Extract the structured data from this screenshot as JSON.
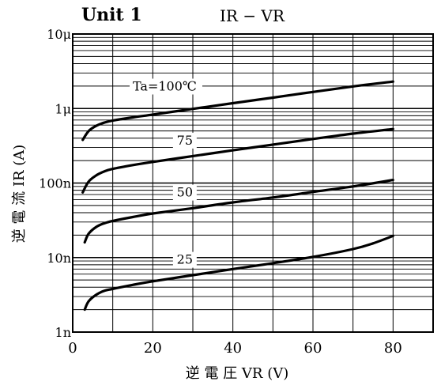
{
  "chart_data": {
    "type": "line",
    "title_left": "Unit 1",
    "title_right": "IR − VR",
    "xlabel": "逆 電 圧 VR (V)",
    "ylabel": "逆 電 流 IR (A)",
    "xlim": [
      0,
      90
    ],
    "ylim": [
      1e-09,
      1e-05
    ],
    "y_scale": "log",
    "grid": true,
    "x_ticks": [
      0,
      20,
      40,
      60,
      80
    ],
    "y_ticks": [
      {
        "value": 1e-09,
        "label": "1n"
      },
      {
        "value": 1e-08,
        "label": "10n"
      },
      {
        "value": 1e-07,
        "label": "100n"
      },
      {
        "value": 1e-06,
        "label": "1μ"
      },
      {
        "value": 1e-05,
        "label": "10μ"
      }
    ],
    "series": [
      {
        "name": "Ta=100℃",
        "x": [
          2.5,
          4,
          6,
          8,
          10,
          15,
          20,
          30,
          40,
          50,
          60,
          70,
          80
        ],
        "y": [
          3.8e-07,
          5e-07,
          5.9e-07,
          6.5e-07,
          6.9e-07,
          7.6e-07,
          8.3e-07,
          9.9e-07,
          1.18e-06,
          1.4e-06,
          1.67e-06,
          1.98e-06,
          2.3e-06
        ]
      },
      {
        "name": "75",
        "x": [
          2.5,
          4,
          6,
          8,
          10,
          15,
          20,
          30,
          40,
          50,
          60,
          70,
          80
        ],
        "y": [
          7.5e-08,
          1.05e-07,
          1.28e-07,
          1.44e-07,
          1.55e-07,
          1.74e-07,
          1.92e-07,
          2.3e-07,
          2.75e-07,
          3.28e-07,
          3.9e-07,
          4.6e-07,
          5.3e-07
        ]
      },
      {
        "name": "50",
        "x": [
          3,
          4,
          6,
          8,
          10,
          15,
          20,
          30,
          40,
          50,
          60,
          70,
          80
        ],
        "y": [
          1.6e-08,
          2.1e-08,
          2.6e-08,
          2.9e-08,
          3.1e-08,
          3.5e-08,
          3.9e-08,
          4.6e-08,
          5.5e-08,
          6.4e-08,
          7.6e-08,
          9e-08,
          1.1e-07
        ]
      },
      {
        "name": "25",
        "x": [
          3,
          4,
          6,
          8,
          10,
          15,
          20,
          30,
          40,
          50,
          60,
          70,
          75,
          80
        ],
        "y": [
          2e-09,
          2.6e-09,
          3.2e-09,
          3.6e-09,
          3.8e-09,
          4.3e-09,
          4.8e-09,
          5.8e-09,
          7e-09,
          8.4e-09,
          1.02e-08,
          1.3e-08,
          1.55e-08,
          1.95e-08
        ]
      }
    ],
    "series_labels": [
      "Ta=100℃",
      "75",
      "50",
      "25"
    ]
  }
}
